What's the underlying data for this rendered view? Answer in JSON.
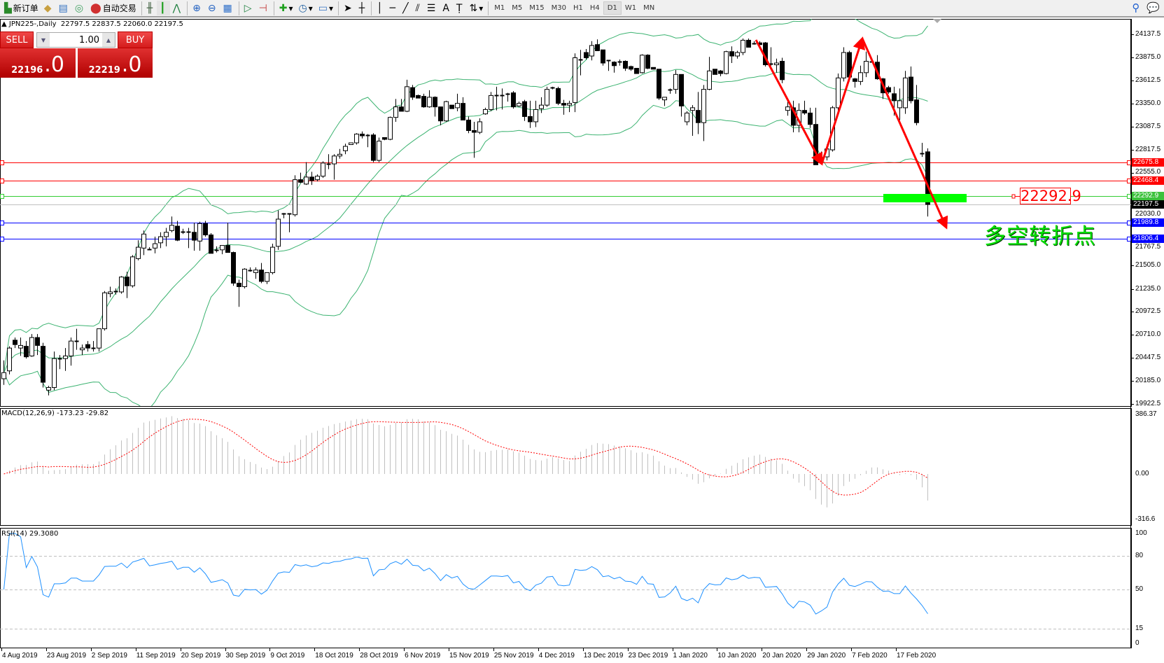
{
  "toolbar": {
    "new_order": "新订单",
    "auto_trading": "自动交易",
    "timeframes": [
      "M1",
      "M5",
      "M15",
      "M30",
      "H1",
      "H4",
      "D1",
      "W1",
      "MN"
    ],
    "selected_timeframe": "D1",
    "icons": [
      "new-order-icon",
      "history-icon",
      "experts-icon",
      "signals-icon",
      "auto-trading-icon",
      "bar-chart-icon",
      "candlestick-icon",
      "line-chart-icon",
      "zoom-in-icon",
      "zoom-out-icon",
      "tile-windows-icon",
      "auto-scroll-icon",
      "chart-shift-icon",
      "indicators-icon",
      "periods-icon",
      "templates-icon",
      "cursor-icon",
      "crosshair-icon",
      "vertical-line-icon",
      "horizontal-line-icon",
      "trendline-icon",
      "fibonacci-channels-icon",
      "fibonacci-icon",
      "text-icon",
      "text-label-icon",
      "arrows-icon",
      "search-icon",
      "chat-icon"
    ]
  },
  "symbol_line": "JPN225-,Daily  22797.5 22837.5 22060.0 22197.5",
  "trade_panel": {
    "sell_label": "SELL",
    "buy_label": "BUY",
    "lot": "1.00",
    "sell_price_main": "22196",
    "sell_price_big": ".0",
    "buy_price_main": "22219",
    "buy_price_big": ".0"
  },
  "annotations": {
    "price_box": "22292.9",
    "text": "多空转折点",
    "colors": {
      "arrow": "#ff0000",
      "zone": "#00ff00",
      "text": "#00e000"
    }
  },
  "indicators": {
    "macd_label": "MACD(12,26,9) -173.23 -29.82",
    "rsi_label": "RSI(14) 29.3080",
    "bollinger": {
      "period": 20,
      "deviation": 2,
      "color": "#3cb371"
    }
  },
  "chart_data": {
    "type": "candlestick",
    "symbol": "JPN225-",
    "timeframe": "Daily",
    "price_axis": {
      "ticks": [
        "24137.5",
        "23875.0",
        "23612.5",
        "23350.0",
        "23087.5",
        "22817.5",
        "22555.0",
        "22030.0",
        "21767.5",
        "21505.0",
        "21235.0",
        "20972.5",
        "20710.0",
        "20447.5",
        "20185.0",
        "19922.5"
      ],
      "range": [
        19922.5,
        24137.5
      ]
    },
    "macd_axis": {
      "ticks": [
        "386.37",
        "0.00",
        "-316.6"
      ],
      "range": [
        -316.6,
        386.37
      ]
    },
    "rsi_axis": {
      "ticks": [
        "100",
        "80",
        "50",
        "15",
        "0"
      ],
      "levels": [
        80,
        50,
        15
      ]
    },
    "date_labels": [
      "4 Aug 2019",
      "23 Aug 2019",
      "2 Sep 2019",
      "11 Sep 2019",
      "20 Sep 2019",
      "30 Sep 2019",
      "9 Oct 2019",
      "18 Oct 2019",
      "28 Oct 2019",
      "6 Nov 2019",
      "15 Nov 2019",
      "25 Nov 2019",
      "4 Dec 2019",
      "13 Dec 2019",
      "23 Dec 2019",
      "1 Jan 2020",
      "10 Jan 2020",
      "20 Jan 2020",
      "29 Jan 2020",
      "7 Feb 2020",
      "17 Feb 2020"
    ],
    "hlines": [
      {
        "price": "22675.8",
        "color": "#ff0000"
      },
      {
        "price": "22468.4",
        "color": "#ff0000"
      },
      {
        "price": "22292.9",
        "color": "#32cd32"
      },
      {
        "price": "22197.5",
        "color": "#000000",
        "line": "#c0c0c0"
      },
      {
        "price": "21989.8",
        "color": "#0000ff"
      },
      {
        "price": "21806.4",
        "color": "#0000ff"
      }
    ],
    "candles_ohlc": [
      [
        20210,
        20420,
        20140,
        20280
      ],
      [
        20300,
        20580,
        20260,
        20560
      ],
      [
        20650,
        20680,
        20560,
        20600
      ],
      [
        20560,
        20680,
        20470,
        20590
      ],
      [
        20580,
        20640,
        20440,
        20460
      ],
      [
        20470,
        20720,
        20460,
        20680
      ],
      [
        20680,
        20720,
        20480,
        20590
      ],
      [
        20580,
        20620,
        20110,
        20170
      ],
      [
        20080,
        20130,
        20020,
        20110
      ],
      [
        20110,
        20520,
        20080,
        20440
      ],
      [
        20440,
        20480,
        20320,
        20440
      ],
      [
        20440,
        20560,
        20300,
        20470
      ],
      [
        20470,
        20680,
        20360,
        20640
      ],
      [
        20640,
        20780,
        20540,
        20640
      ],
      [
        20540,
        20600,
        20480,
        20560
      ],
      [
        20600,
        20640,
        20520,
        20560
      ],
      [
        20560,
        20640,
        20520,
        20560
      ],
      [
        20560,
        20780,
        20520,
        20780
      ],
      [
        20780,
        21210,
        20760,
        21190
      ],
      [
        21180,
        21260,
        21140,
        21200
      ],
      [
        21210,
        21240,
        21170,
        21200
      ],
      [
        21200,
        21380,
        21180,
        21370
      ],
      [
        21370,
        21430,
        21130,
        21270
      ],
      [
        21270,
        21620,
        21250,
        21600
      ],
      [
        21580,
        21790,
        21560,
        21710
      ],
      [
        21700,
        21900,
        21620,
        21860
      ],
      [
        21690,
        21710,
        21690,
        21690
      ],
      [
        21700,
        21830,
        21640,
        21750
      ],
      [
        21760,
        21880,
        21700,
        21830
      ],
      [
        21830,
        21930,
        21720,
        21880
      ],
      [
        21900,
        22060,
        21880,
        21960
      ],
      [
        21950,
        22010,
        21780,
        21790
      ],
      [
        21890,
        21920,
        21860,
        21890
      ],
      [
        21890,
        21930,
        21700,
        21890
      ],
      [
        21880,
        21990,
        21670,
        21790
      ],
      [
        21780,
        22000,
        21670,
        21980
      ],
      [
        21980,
        22010,
        21830,
        21850
      ],
      [
        21850,
        21870,
        21640,
        21640
      ],
      [
        21680,
        21720,
        21650,
        21680
      ],
      [
        21680,
        21730,
        21630,
        21730
      ],
      [
        21730,
        21990,
        21650,
        21650
      ],
      [
        21650,
        21660,
        21270,
        21300
      ],
      [
        21300,
        21340,
        21030,
        21260
      ],
      [
        21260,
        21470,
        21240,
        21460
      ],
      [
        21450,
        21480,
        21430,
        21440
      ],
      [
        21420,
        21480,
        21350,
        21450
      ],
      [
        21450,
        21530,
        21300,
        21320
      ],
      [
        21320,
        21380,
        21290,
        21420
      ],
      [
        21420,
        21750,
        21400,
        21710
      ],
      [
        21720,
        22130,
        21680,
        22030
      ],
      [
        22090,
        22100,
        22040,
        22090
      ],
      [
        22090,
        22090,
        21880,
        22080
      ],
      [
        22080,
        22530,
        22060,
        22480
      ],
      [
        22480,
        22560,
        22440,
        22450
      ],
      [
        22430,
        22680,
        22420,
        22510
      ],
      [
        22510,
        22570,
        22420,
        22470
      ],
      [
        22480,
        22540,
        22460,
        22520
      ],
      [
        22520,
        22690,
        22500,
        22670
      ],
      [
        22660,
        22770,
        22600,
        22660
      ],
      [
        22660,
        22770,
        22480,
        22750
      ],
      [
        22750,
        22830,
        22720,
        22770
      ],
      [
        22810,
        22890,
        22770,
        22860
      ],
      [
        22880,
        22900,
        22880,
        22900
      ],
      [
        22900,
        23010,
        22880,
        23000
      ],
      [
        23000,
        23030,
        22950,
        22980
      ],
      [
        22990,
        23000,
        22850,
        22990
      ],
      [
        22990,
        23010,
        22680,
        22700
      ],
      [
        22700,
        22960,
        22680,
        22920
      ],
      [
        22960,
        22960,
        22930,
        22940
      ],
      [
        22940,
        23200,
        22930,
        23190
      ],
      [
        23190,
        23400,
        23140,
        23310
      ],
      [
        23310,
        23400,
        23280,
        23260
      ],
      [
        23260,
        23620,
        23250,
        23540
      ],
      [
        23530,
        23560,
        23390,
        23420
      ],
      [
        23440,
        23450,
        23410,
        23410
      ],
      [
        23430,
        23460,
        23300,
        23310
      ],
      [
        23310,
        23500,
        23300,
        23420
      ],
      [
        23420,
        23430,
        23200,
        23310
      ],
      [
        23310,
        23310,
        23100,
        23150
      ],
      [
        23150,
        23380,
        23140,
        23370
      ],
      [
        23330,
        23330,
        23290,
        23290
      ],
      [
        23300,
        23460,
        23260,
        23350
      ],
      [
        23350,
        23420,
        23160,
        23160
      ],
      [
        23160,
        23200,
        23010,
        23040
      ],
      [
        23040,
        23140,
        22730,
        23020
      ],
      [
        23020,
        23180,
        23000,
        23140
      ],
      [
        23230,
        23300,
        23220,
        23280
      ],
      [
        23280,
        23480,
        23260,
        23440
      ],
      [
        23440,
        23540,
        23270,
        23440
      ],
      [
        23440,
        23520,
        23280,
        23430
      ],
      [
        23460,
        23470,
        23370,
        23460
      ],
      [
        23470,
        23490,
        23290,
        23310
      ],
      [
        23320,
        23370,
        23310,
        23350
      ],
      [
        23370,
        23390,
        23150,
        23200
      ],
      [
        23200,
        23380,
        23070,
        23140
      ],
      [
        23140,
        23380,
        23080,
        23280
      ],
      [
        23290,
        23420,
        23240,
        23330
      ],
      [
        23330,
        23540,
        23310,
        23510
      ],
      [
        23530,
        23540,
        23510,
        23530
      ],
      [
        23520,
        23540,
        23330,
        23350
      ],
      [
        23350,
        23390,
        23220,
        23330
      ],
      [
        23330,
        23380,
        23250,
        23350
      ],
      [
        23360,
        23920,
        23250,
        23870
      ],
      [
        23850,
        23960,
        23670,
        23850
      ],
      [
        23930,
        23970,
        23850,
        23870
      ],
      [
        23890,
        24060,
        23840,
        24010
      ],
      [
        24020,
        24080,
        23950,
        23950
      ],
      [
        23960,
        23960,
        23780,
        23810
      ],
      [
        23840,
        23840,
        23720,
        23840
      ],
      [
        23820,
        23830,
        23700,
        23780
      ],
      [
        23830,
        23850,
        23780,
        23830
      ],
      [
        23830,
        23840,
        23720,
        23750
      ],
      [
        23770,
        23780,
        23720,
        23740
      ],
      [
        23750,
        23750,
        23690,
        23690
      ],
      [
        23700,
        23910,
        23690,
        23900
      ],
      [
        23900,
        23910,
        23740,
        23750
      ],
      [
        23760,
        23760,
        23740,
        23740
      ],
      [
        23740,
        23740,
        23390,
        23410
      ],
      [
        23390,
        23420,
        23320,
        23420
      ],
      [
        23510,
        23520,
        23460,
        23510
      ],
      [
        23510,
        23730,
        23460,
        23680
      ],
      [
        23680,
        23680,
        23200,
        23320
      ],
      [
        23140,
        23260,
        23100,
        23240
      ],
      [
        23270,
        23330,
        22980,
        23300
      ],
      [
        23270,
        23480,
        23000,
        23130
      ],
      [
        23130,
        23560,
        22920,
        23510
      ],
      [
        23510,
        23880,
        23500,
        23720
      ],
      [
        23740,
        23740,
        23680,
        23680
      ],
      [
        23720,
        23730,
        23660,
        23690
      ],
      [
        23690,
        23950,
        23680,
        23940
      ],
      [
        23940,
        24000,
        23810,
        23890
      ],
      [
        23890,
        23950,
        23860,
        23930
      ],
      [
        23930,
        24090,
        23900,
        24070
      ],
      [
        24070,
        24090,
        23990,
        23990
      ],
      [
        24030,
        24060,
        24020,
        24030
      ],
      [
        24040,
        24060,
        23990,
        24020
      ],
      [
        24040,
        24050,
        23770,
        23790
      ],
      [
        23800,
        23990,
        23780,
        23800
      ],
      [
        23790,
        23860,
        23700,
        23810
      ],
      [
        23830,
        23870,
        23580,
        23620
      ],
      [
        23270,
        23390,
        23210,
        23310
      ],
      [
        23300,
        23380,
        23020,
        23100
      ],
      [
        23100,
        23350,
        23020,
        23270
      ],
      [
        23270,
        23380,
        23220,
        23240
      ],
      [
        23240,
        23300,
        23070,
        23110
      ],
      [
        23110,
        23300,
        22650,
        22650
      ],
      [
        22730,
        22800,
        22680,
        22730
      ],
      [
        22740,
        22880,
        22700,
        22830
      ],
      [
        22820,
        23320,
        22800,
        23300
      ],
      [
        23300,
        23690,
        23260,
        23640
      ],
      [
        23640,
        23990,
        23600,
        23930
      ],
      [
        23930,
        23950,
        23600,
        23650
      ],
      [
        23630,
        23640,
        23530,
        23600
      ],
      [
        23600,
        23780,
        23560,
        23700
      ],
      [
        23700,
        23940,
        23650,
        23830
      ],
      [
        23830,
        23840,
        23820,
        23820
      ],
      [
        23820,
        23900,
        23620,
        23630
      ],
      [
        23630,
        23640,
        23400,
        23470
      ],
      [
        23530,
        23550,
        23460,
        23480
      ],
      [
        23460,
        23540,
        23210,
        23380
      ],
      [
        23300,
        23520,
        23160,
        23380
      ],
      [
        23300,
        23720,
        23230,
        23640
      ],
      [
        23650,
        23770,
        23350,
        23380
      ],
      [
        23390,
        23560,
        23100,
        23130
      ],
      [
        22780,
        22900,
        22740,
        22780
      ],
      [
        22797.5,
        22837.5,
        22060,
        22197.5
      ]
    ],
    "colors": {
      "bull_body": "#ffffff",
      "bear_body": "#000000",
      "macd_hist": "#c0c0c0",
      "macd_signal": "#ff0000",
      "rsi": "#1e90ff"
    }
  }
}
